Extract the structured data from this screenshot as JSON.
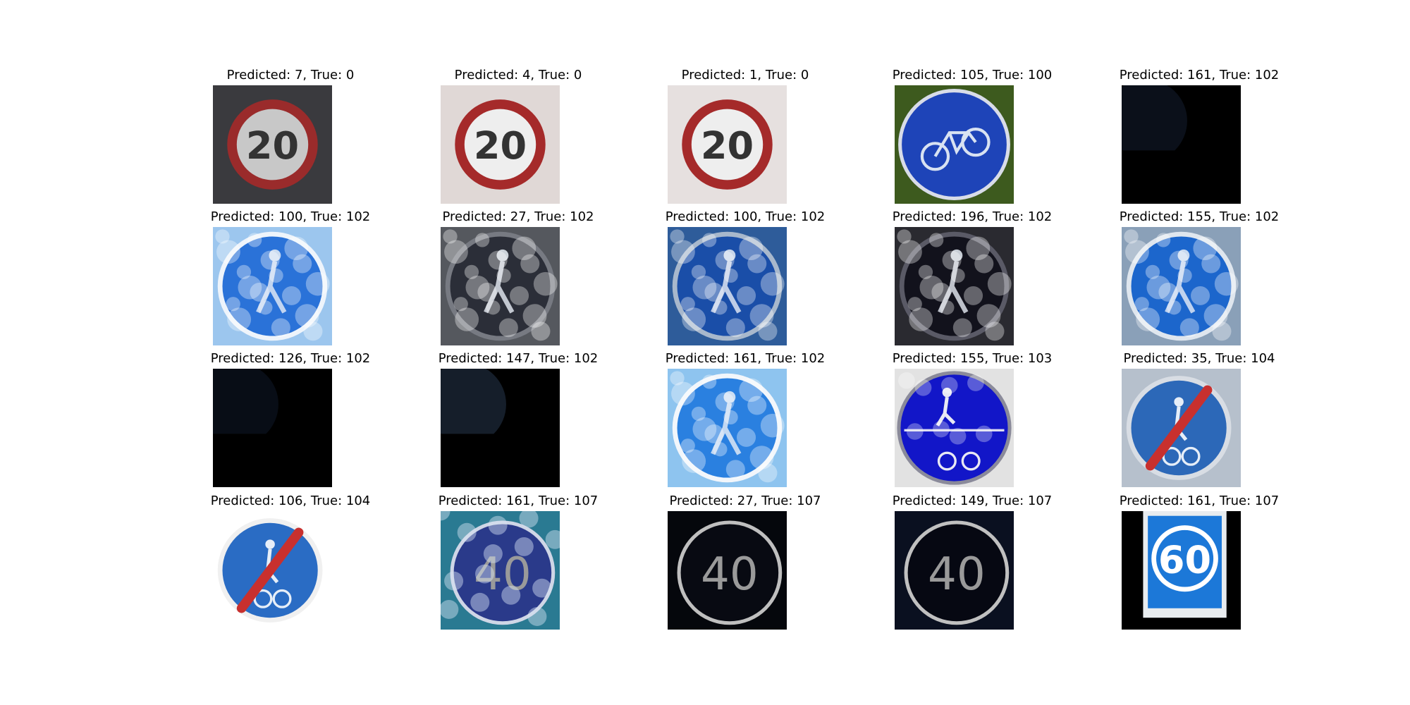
{
  "figure": {
    "panels": [
      {
        "title": "Predicted: 7, True: 0",
        "icon": "speed-limit-20-sign",
        "colors": {
          "bg": "#3a3a3e",
          "fg": "#c8c8c8",
          "ring": "#9a2b2b"
        }
      },
      {
        "title": "Predicted: 4, True: 0",
        "icon": "speed-limit-20-sign",
        "colors": {
          "bg": "#e0d8d6",
          "fg": "#eeeeee",
          "ring": "#a52a2a"
        }
      },
      {
        "title": "Predicted: 1, True: 0",
        "icon": "speed-limit-20-sign",
        "colors": {
          "bg": "#e6e0df",
          "fg": "#eeeeee",
          "ring": "#a52a2a"
        }
      },
      {
        "title": "Predicted: 105, True: 100",
        "icon": "bicycle-sign",
        "colors": {
          "bg": "#3d5a1e",
          "fg": "#1e44b8",
          "ring": "#d8dce8"
        }
      },
      {
        "title": "Predicted: 161, True: 102",
        "icon": "dark-image",
        "colors": {
          "bg": "#000000",
          "fg": "#0e1420",
          "ring": "#000000"
        }
      },
      {
        "title": "Predicted: 100, True: 102",
        "icon": "pedestrian-sign-bokeh",
        "colors": {
          "bg": "#9cc6ee",
          "fg": "#2a72d8",
          "ring": "#eef4fb"
        }
      },
      {
        "title": "Predicted: 27, True: 102",
        "icon": "pedestrian-sign-bokeh",
        "colors": {
          "bg": "#55585e",
          "fg": "#2b2e38",
          "ring": "#777a82"
        }
      },
      {
        "title": "Predicted: 100, True: 102",
        "icon": "pedestrian-sign-bokeh",
        "colors": {
          "bg": "#2e5c9a",
          "fg": "#1a4ea8",
          "ring": "#a8b8cc"
        }
      },
      {
        "title": "Predicted: 196, True: 102",
        "icon": "pedestrian-sign-bokeh",
        "colors": {
          "bg": "#2a2a30",
          "fg": "#12121c",
          "ring": "#5a5a66"
        }
      },
      {
        "title": "Predicted: 155, True: 102",
        "icon": "pedestrian-sign-bokeh",
        "colors": {
          "bg": "#8aa0b8",
          "fg": "#1c66cc",
          "ring": "#dfe6ee"
        }
      },
      {
        "title": "Predicted: 126, True: 102",
        "icon": "dark-image",
        "colors": {
          "bg": "#000000",
          "fg": "#0a101c",
          "ring": "#000000"
        }
      },
      {
        "title": "Predicted: 147, True: 102",
        "icon": "dark-image",
        "colors": {
          "bg": "#000000",
          "fg": "#1a2534",
          "ring": "#000000"
        }
      },
      {
        "title": "Predicted: 161, True: 102",
        "icon": "pedestrian-sign-bokeh",
        "colors": {
          "bg": "#8ec4ef",
          "fg": "#2a80e0",
          "ring": "#f2f6fb"
        }
      },
      {
        "title": "Predicted: 155, True: 103",
        "icon": "pedestrian-bicycle-sign",
        "colors": {
          "bg": "#e2e2e2",
          "fg": "#1216c8",
          "ring": "#cfcfcf"
        }
      },
      {
        "title": "Predicted: 35, True: 104",
        "icon": "end-shared-path-sign",
        "colors": {
          "bg": "#b6c0cc",
          "fg": "#2c68b8",
          "ring": "#d8dde4"
        }
      },
      {
        "title": "Predicted: 106, True: 104",
        "icon": "end-shared-path-sign",
        "colors": {
          "bg": "#ffffff",
          "fg": "#2a6cc4",
          "ring": "#f0f0f0"
        }
      },
      {
        "title": "Predicted: 161, True: 107",
        "icon": "minimum-speed-40-sign",
        "colors": {
          "bg": "#2a7a92",
          "fg": "#2a3a8a",
          "ring": "#cfd6e6"
        }
      },
      {
        "title": "Predicted: 27, True: 107",
        "icon": "minimum-speed-40-sign",
        "colors": {
          "bg": "#05070c",
          "fg": "#080a12",
          "ring": "#bfbfbf"
        }
      },
      {
        "title": "Predicted: 149, True: 107",
        "icon": "minimum-speed-40-sign",
        "colors": {
          "bg": "#0a1020",
          "fg": "#060812",
          "ring": "#c0c0c0"
        }
      },
      {
        "title": "Predicted: 161, True: 107",
        "icon": "minimum-speed-60-sign",
        "colors": {
          "bg": "#000000",
          "fg": "#1c78d8",
          "ring": "#ffffff"
        }
      }
    ]
  }
}
